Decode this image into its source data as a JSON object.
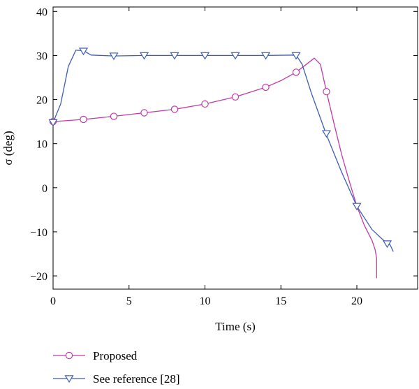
{
  "chart_data": {
    "type": "line",
    "title": "",
    "xlabel": "Time (s)",
    "ylabel": "σ (deg)",
    "xlim": [
      0,
      24
    ],
    "ylim": [
      -23,
      41
    ],
    "x_ticks": [
      0,
      5,
      10,
      15,
      20
    ],
    "y_ticks": [
      -20,
      -10,
      0,
      10,
      20,
      30,
      40
    ],
    "grid": false,
    "legend_position": "bottom-left",
    "series": [
      {
        "name": "Proposed",
        "color": "#c23aa6",
        "marker": "circle",
        "line": [
          [
            0,
            15.0
          ],
          [
            2,
            15.5
          ],
          [
            4,
            16.2
          ],
          [
            6,
            17.0
          ],
          [
            8,
            17.8
          ],
          [
            10,
            19.0
          ],
          [
            12,
            20.6
          ],
          [
            14,
            22.8
          ],
          [
            15,
            24.3
          ],
          [
            16,
            26.2
          ],
          [
            16.6,
            27.8
          ],
          [
            17.2,
            29.4
          ],
          [
            17.6,
            28.0
          ],
          [
            18,
            21.8
          ],
          [
            18.5,
            14.5
          ],
          [
            19,
            7.5
          ],
          [
            19.5,
            1.5
          ],
          [
            20,
            -4.2
          ],
          [
            20.5,
            -8.6
          ],
          [
            21,
            -12.0
          ],
          [
            21.2,
            -14.0
          ],
          [
            21.3,
            -16.0
          ],
          [
            21.3,
            -20.5
          ]
        ],
        "markers": [
          [
            0,
            15.0
          ],
          [
            2,
            15.5
          ],
          [
            4,
            16.2
          ],
          [
            6,
            17.0
          ],
          [
            8,
            17.8
          ],
          [
            10,
            19.0
          ],
          [
            12,
            20.6
          ],
          [
            14,
            22.8
          ],
          [
            16,
            26.2
          ],
          [
            18,
            21.8
          ]
        ]
      },
      {
        "name": "See reference [28]",
        "color": "#3e5db4",
        "marker": "triangle-down",
        "line": [
          [
            0,
            14.8
          ],
          [
            0.5,
            19.0
          ],
          [
            1.0,
            27.5
          ],
          [
            1.5,
            31.2
          ],
          [
            2,
            31.1
          ],
          [
            2.5,
            30.1
          ],
          [
            4,
            29.9
          ],
          [
            6,
            30.0
          ],
          [
            8,
            30.0
          ],
          [
            10,
            30.0
          ],
          [
            12,
            30.0
          ],
          [
            14,
            30.0
          ],
          [
            16,
            30.1
          ],
          [
            16.4,
            28.0
          ],
          [
            17,
            21.5
          ],
          [
            18,
            12.0
          ],
          [
            19,
            3.5
          ],
          [
            20,
            -4.2
          ],
          [
            21,
            -9.5
          ],
          [
            22,
            -12.7
          ],
          [
            22.2,
            -13.0
          ],
          [
            22.4,
            -14.5
          ]
        ],
        "markers": [
          [
            0,
            14.8
          ],
          [
            2,
            31.0
          ],
          [
            4,
            29.9
          ],
          [
            6,
            30.0
          ],
          [
            8,
            30.0
          ],
          [
            10,
            30.0
          ],
          [
            12,
            30.0
          ],
          [
            14,
            30.0
          ],
          [
            16,
            30.0
          ],
          [
            18,
            12.3
          ],
          [
            20,
            -4.2
          ],
          [
            22,
            -12.7
          ]
        ]
      }
    ]
  }
}
